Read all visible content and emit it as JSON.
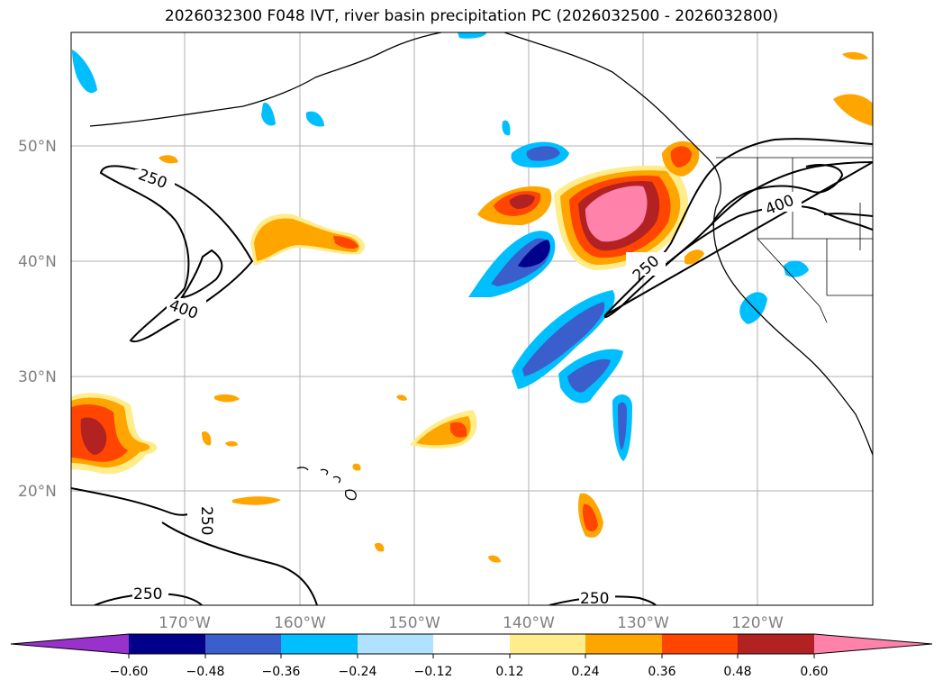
{
  "title": "2026032300 F048 IVT, river basin precipitation PC (2026032500 - 2026032800)",
  "map": {
    "lat_labels": [
      "50°N",
      "40°N",
      "30°N",
      "20°N"
    ],
    "lon_labels": [
      "170°W",
      "160°W",
      "150°W",
      "140°W",
      "130°W",
      "120°W"
    ],
    "ivt_contour_labels": [
      "250",
      "400",
      "250",
      "400",
      "250",
      "250",
      "250"
    ]
  },
  "colorbar": {
    "tick_labels": [
      "−0.60",
      "−0.48",
      "−0.36",
      "−0.24",
      "−0.12",
      "0.12",
      "0.24",
      "0.36",
      "0.48",
      "0.60"
    ],
    "colors": [
      "#9932cc",
      "#00008b",
      "#3a5fcd",
      "#00bfff",
      "#b0e2ff",
      "#ffffff",
      "#ffec8b",
      "#ffa500",
      "#ff4500",
      "#b22222",
      "#ff82ab"
    ]
  }
}
